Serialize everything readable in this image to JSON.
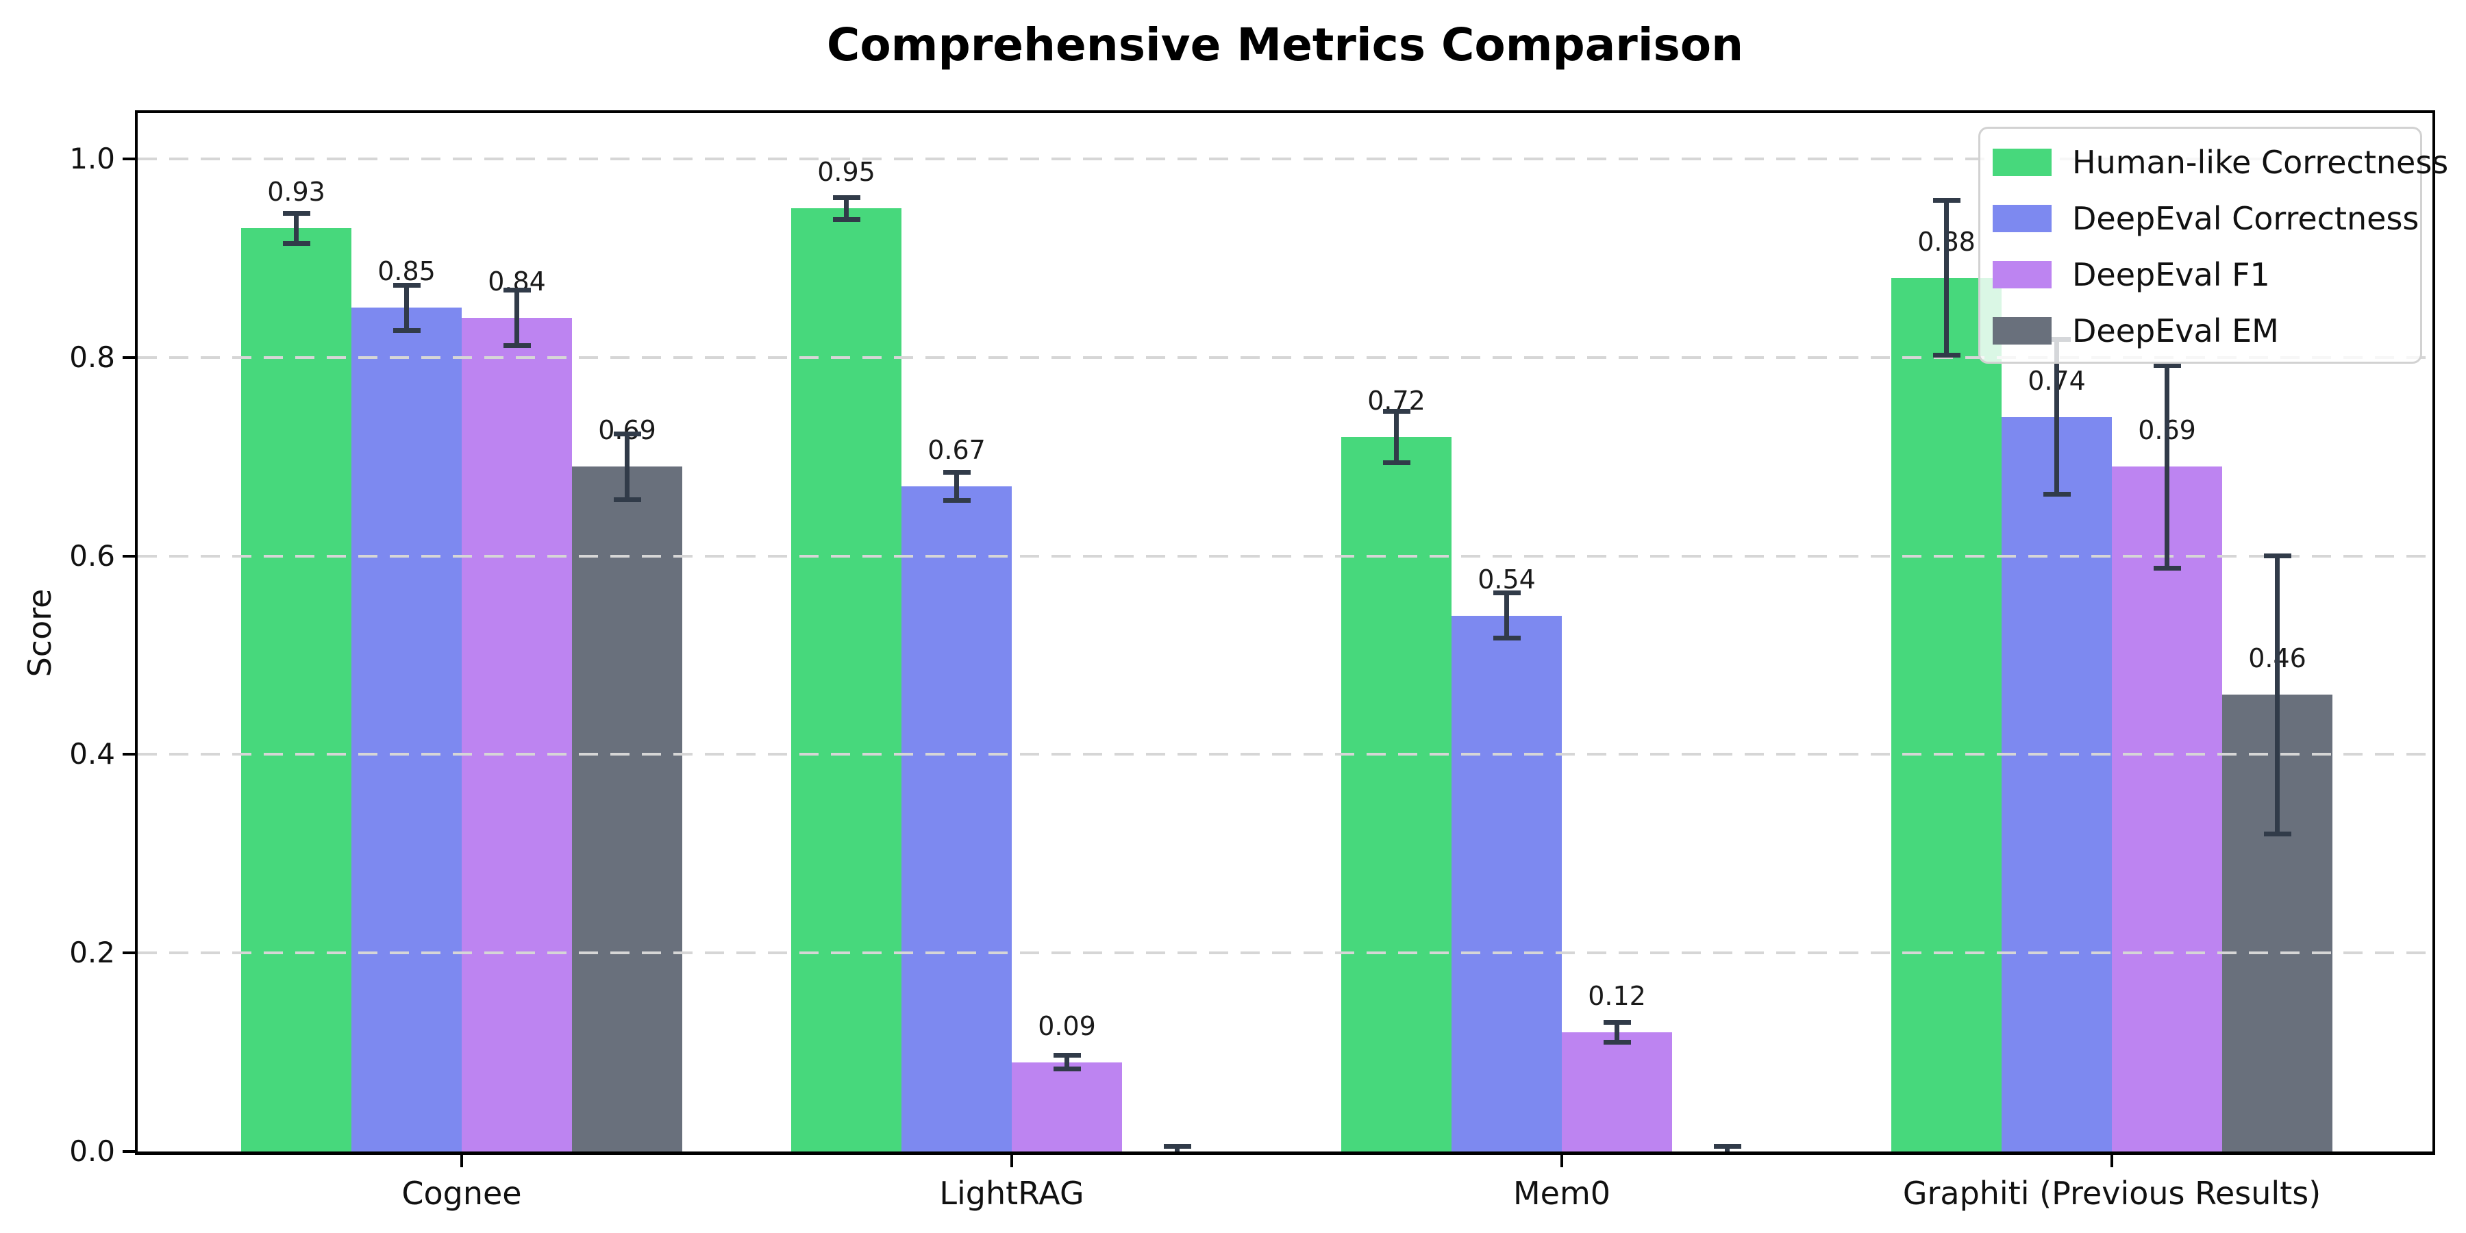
{
  "title": "Comprehensive Metrics Comparison",
  "chart_data": {
    "type": "bar",
    "title": "Comprehensive Metrics Comparison",
    "ylabel": "Score",
    "xlabel": "",
    "categories": [
      "Cognee",
      "LightRAG",
      "Mem0",
      "Graphiti (Previous Results)"
    ],
    "series": [
      {
        "name": "Human-like Correctness",
        "color": "#47d87c",
        "values": [
          0.93,
          0.95,
          0.72,
          0.88
        ],
        "errors": [
          0.015,
          0.011,
          0.026,
          0.078
        ],
        "labels": [
          "0.93",
          "0.95",
          "0.72",
          "0.88"
        ]
      },
      {
        "name": "DeepEval Correctness",
        "color": "#7d89f0",
        "values": [
          0.85,
          0.67,
          0.54,
          0.74
        ],
        "errors": [
          0.023,
          0.014,
          0.023,
          0.078
        ],
        "labels": [
          "0.85",
          "0.67",
          "0.54",
          "0.74"
        ]
      },
      {
        "name": "DeepEval F1",
        "color": "#bd84f1",
        "values": [
          0.84,
          0.09,
          0.12,
          0.69
        ],
        "errors": [
          0.028,
          0.007,
          0.01,
          0.102
        ],
        "labels": [
          "0.84",
          "0.09",
          "0.12",
          "0.69"
        ]
      },
      {
        "name": "DeepEval EM",
        "color": "#69707c",
        "values": [
          0.69,
          0.0,
          0.0,
          0.46
        ],
        "errors": [
          0.033,
          0.005,
          0.005,
          0.14
        ],
        "labels": [
          "0.69",
          null,
          null,
          "0.46"
        ]
      }
    ],
    "y_ticks": [
      0.0,
      0.2,
      0.4,
      0.6,
      0.8,
      1.0
    ],
    "y_tick_labels": [
      "0.0",
      "0.2",
      "0.4",
      "0.6",
      "0.8",
      "1.0"
    ],
    "ylim": [
      0,
      1.046
    ],
    "grid": {
      "axis": "y",
      "style": "dashed",
      "color": "#d6d6d6",
      "drawn_over_bars": true
    },
    "legend": {
      "position": "upper right",
      "entries": [
        "Human-like Correctness",
        "DeepEval Correctness",
        "DeepEval F1",
        "DeepEval EM"
      ]
    },
    "error_bar_color": "#313b49",
    "bar_label_color": "#1a1a1a"
  }
}
